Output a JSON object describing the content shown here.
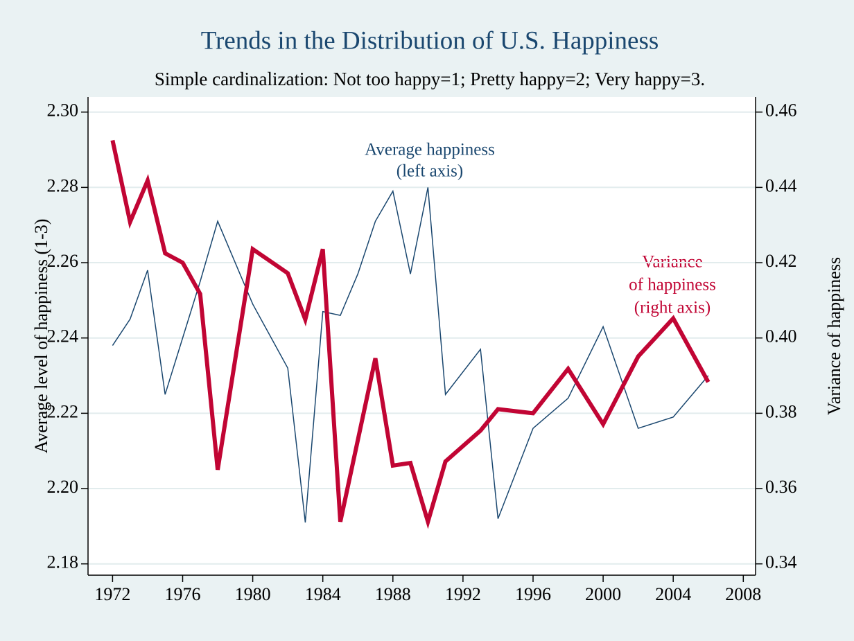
{
  "chart_data": {
    "type": "line",
    "title": "Trends in the Distribution of U.S. Happiness",
    "subtitle": "Simple cardinalization: Not too happy=1; Pretty happy=2; Very happy=3.",
    "y_label": "Average level of happiness (1-3)",
    "y2_label": "Variance of happiness",
    "annotations": [
      [
        "Average happiness",
        "(left axis)"
      ],
      [
        "Variance",
        "of happiness",
        "(right axis)"
      ]
    ],
    "x": [
      1972,
      1973,
      1974,
      1975,
      1976,
      1977,
      1978,
      1980,
      1982,
      1983,
      1984,
      1985,
      1986,
      1987,
      1988,
      1989,
      1990,
      1991,
      1993,
      1994,
      1996,
      1998,
      2000,
      2002,
      2004,
      2006
    ],
    "series": [
      {
        "color": "#1a476f",
        "axis": "y",
        "values": [
          2.238,
          2.245,
          2.258,
          2.225,
          2.24,
          2.255,
          2.271,
          2.249,
          2.232,
          2.191,
          2.247,
          2.246,
          2.257,
          2.271,
          2.279,
          2.257,
          2.28,
          2.225,
          2.237,
          2.192,
          2.216,
          2.224,
          2.243,
          2.216,
          2.219,
          2.23
        ]
      },
      {
        "color": "#c10534",
        "axis": "y2",
        "values": [
          0.4525,
          0.4308,
          0.4418,
          0.4225,
          0.42,
          0.4117,
          0.365,
          0.4236,
          0.4172,
          0.4049,
          0.4236,
          0.3512,
          0.3729,
          0.3946,
          0.3661,
          0.3668,
          0.3512,
          0.3672,
          0.3754,
          0.3811,
          0.38,
          0.3918,
          0.3771,
          0.3951,
          0.4052,
          0.3883
        ]
      }
    ],
    "xlim": [
      1970.6,
      2008.7
    ],
    "xticks": [
      1972,
      1976,
      1980,
      1984,
      1988,
      1992,
      1996,
      2000,
      2004,
      2008
    ],
    "ylim": [
      2.177,
      2.304
    ],
    "yticks": [
      {
        "value": 2.18,
        "label": "2.18"
      },
      {
        "value": 2.2,
        "label": "2.20"
      },
      2.22,
      2.24,
      2.26,
      2.28,
      {
        "value": 2.3,
        "label": "2.30"
      }
    ],
    "y2lim": [
      0.337,
      0.464
    ],
    "y2ticks": [
      0.34,
      0.36,
      0.38,
      {
        "value": 0.4,
        "label": "0.40"
      },
      0.42,
      0.44,
      0.46
    ],
    "grid": true
  }
}
